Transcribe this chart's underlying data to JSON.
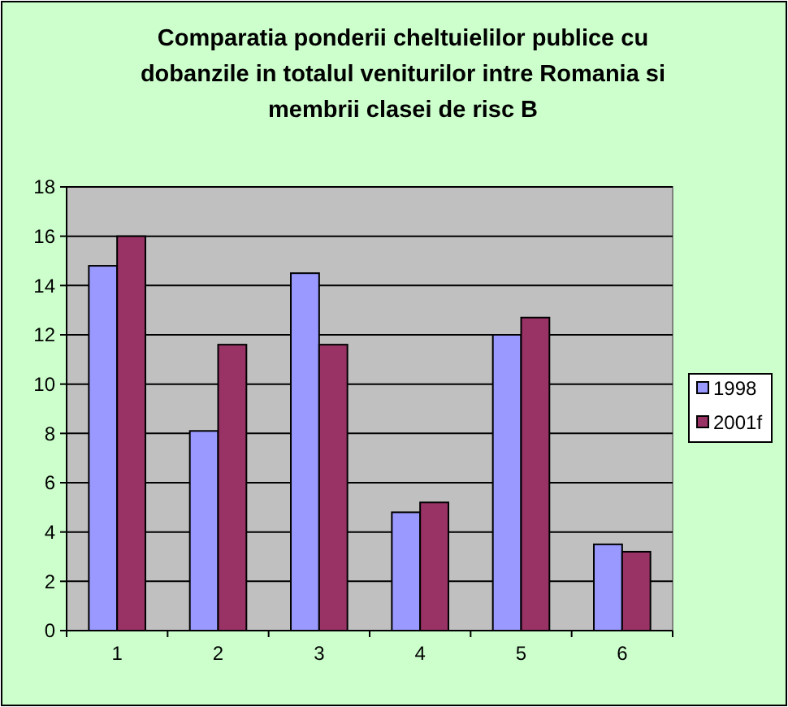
{
  "chart_data": {
    "type": "bar",
    "title": "Comparatia ponderii cheltuielilor publice cu dobanzile in totalul veniturilor intre Romania si membrii clasei de risc B",
    "categories": [
      "1",
      "2",
      "3",
      "4",
      "5",
      "6"
    ],
    "series": [
      {
        "name": "1998",
        "color": "#9999ff",
        "values": [
          14.8,
          8.1,
          14.5,
          4.8,
          12,
          3.5
        ]
      },
      {
        "name": "2001f",
        "color": "#993366",
        "values": [
          16,
          11.6,
          11.6,
          5.2,
          12.7,
          3.2
        ]
      }
    ],
    "ylim": [
      0,
      18
    ],
    "yticks": [
      0,
      2,
      4,
      6,
      8,
      10,
      12,
      14,
      16,
      18
    ],
    "grid": "y",
    "legend": "right"
  }
}
